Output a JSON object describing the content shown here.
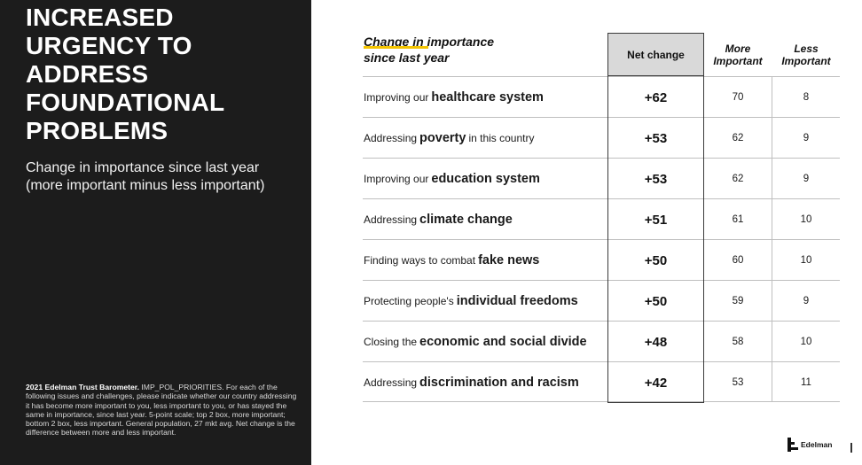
{
  "left": {
    "headline_lines": [
      "Increased",
      "urgency to",
      "address",
      "foundational",
      "problems"
    ],
    "subtitle_lines": [
      "Change in importance since last year",
      "(more important minus less important)"
    ],
    "footnote_bold": "2021 Edelman Trust Barometer.",
    "footnote_text": " IMP_POL_PRIORITIES. For each of the following issues and challenges, please indicate whether our country addressing it has become more important to you, less important to you, or has stayed the same in importance, since last year. 5-point scale; top 2 box, more important; bottom 2 box, less important. General population, 27 mkt avg. Net change is the difference between more and less important."
  },
  "table": {
    "title_lines": [
      "Change in importance",
      "since last year"
    ],
    "col_net": "Net change",
    "col_more_lines": [
      "More",
      "Important"
    ],
    "col_less_lines": [
      "Less",
      "Important"
    ],
    "rows": [
      {
        "pre": "Improving our",
        "key": "healthcare system",
        "post": "",
        "net": "+62",
        "more": "70",
        "less": "8"
      },
      {
        "pre": "Addressing",
        "key": "poverty",
        "post": "in this country",
        "net": "+53",
        "more": "62",
        "less": "9"
      },
      {
        "pre": "Improving our",
        "key": "education system",
        "post": "",
        "net": "+53",
        "more": "62",
        "less": "9"
      },
      {
        "pre": "Addressing",
        "key": "climate change",
        "post": "",
        "net": "+51",
        "more": "61",
        "less": "10"
      },
      {
        "pre": "Finding ways to combat",
        "key": "fake news",
        "post": "",
        "net": "+50",
        "more": "60",
        "less": "10"
      },
      {
        "pre": "Protecting people's",
        "key": "individual freedoms",
        "post": "",
        "net": "+50",
        "more": "59",
        "less": "9"
      },
      {
        "pre": "Closing the",
        "key": "economic and social divide",
        "post": "",
        "net": "+48",
        "more": "58",
        "less": "10"
      },
      {
        "pre": "Addressing",
        "key": "discrimination and racism",
        "post": "",
        "net": "+42",
        "more": "53",
        "less": "11"
      }
    ]
  },
  "branding": {
    "logo_text": "Edelman",
    "logo_icon": "edelman-stair-icon"
  }
}
